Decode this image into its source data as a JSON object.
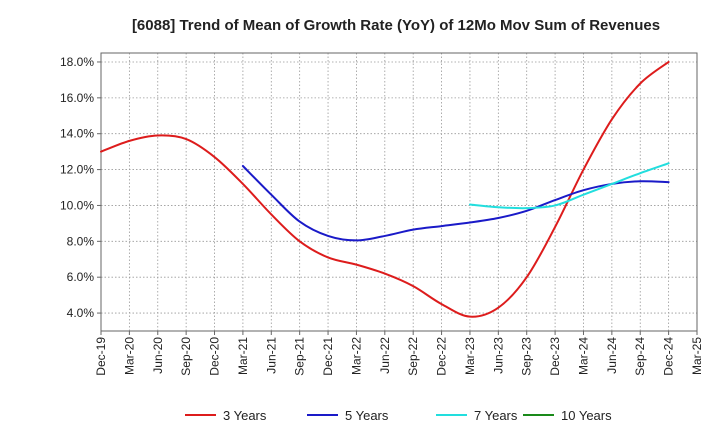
{
  "chart_data": {
    "type": "line",
    "title": "[6088]  Trend of Mean of Growth Rate (YoY) of 12Mo Mov Sum of Revenues",
    "xlabel": "",
    "ylabel": "",
    "x_ticks": [
      "Dec-19",
      "Mar-20",
      "Jun-20",
      "Sep-20",
      "Dec-20",
      "Mar-21",
      "Jun-21",
      "Sep-21",
      "Dec-21",
      "Mar-22",
      "Jun-22",
      "Sep-22",
      "Dec-22",
      "Mar-23",
      "Jun-23",
      "Sep-23",
      "Dec-23",
      "Mar-24",
      "Jun-24",
      "Sep-24",
      "Dec-24",
      "Mar-25"
    ],
    "y_ticks": [
      "4.0%",
      "6.0%",
      "8.0%",
      "10.0%",
      "12.0%",
      "14.0%",
      "16.0%",
      "18.0%"
    ],
    "ylim": [
      3.0,
      18.5
    ],
    "xlim": [
      0,
      21
    ],
    "grid": true,
    "legend_position": "bottom",
    "series": [
      {
        "name": "3 Years",
        "color": "#dd1c1c",
        "x": [
          0,
          1,
          2,
          3,
          4,
          5,
          6,
          7,
          8,
          9,
          10,
          11,
          12,
          13,
          14,
          15,
          16,
          17,
          18,
          19,
          20
        ],
        "values": [
          13.0,
          13.6,
          13.9,
          13.7,
          12.7,
          11.2,
          9.5,
          8.0,
          7.1,
          6.7,
          6.2,
          5.5,
          4.5,
          3.8,
          4.3,
          6.0,
          8.8,
          12.0,
          14.8,
          16.8,
          18.0
        ]
      },
      {
        "name": "5 Years",
        "color": "#1a1ac8",
        "x": [
          5,
          6,
          7,
          8,
          9,
          10,
          11,
          12,
          13,
          14,
          15,
          16,
          17,
          18,
          19,
          20
        ],
        "values": [
          12.2,
          10.6,
          9.1,
          8.3,
          8.05,
          8.3,
          8.65,
          8.85,
          9.05,
          9.3,
          9.7,
          10.3,
          10.85,
          11.2,
          11.35,
          11.3
        ]
      },
      {
        "name": "7 Years",
        "color": "#22dede",
        "x": [
          13,
          14,
          15,
          16,
          17,
          18,
          19,
          20
        ],
        "values": [
          10.05,
          9.9,
          9.85,
          10.0,
          10.6,
          11.2,
          11.8,
          12.35
        ]
      },
      {
        "name": "10 Years",
        "color": "#1a8a1a",
        "x": [],
        "values": []
      }
    ]
  }
}
